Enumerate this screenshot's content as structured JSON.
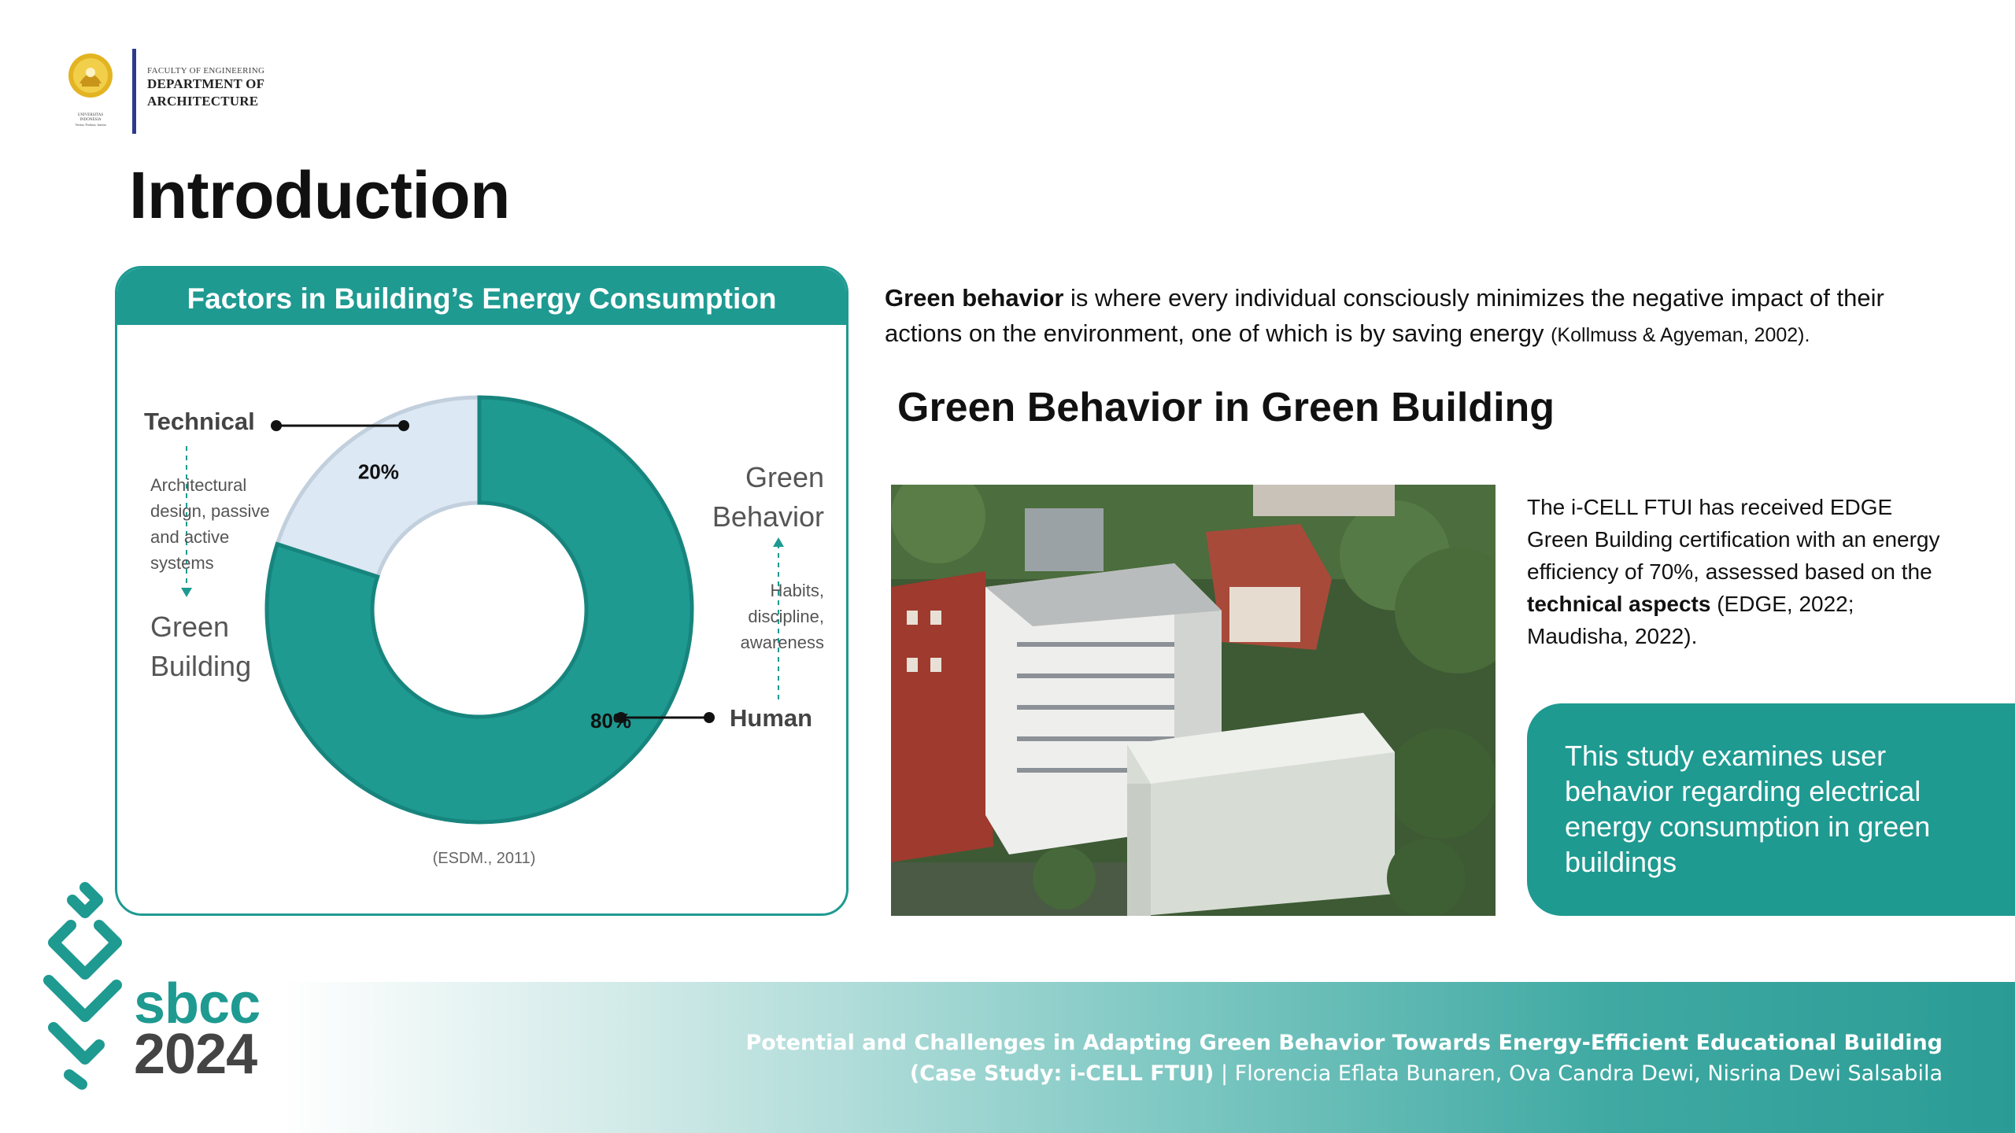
{
  "header": {
    "seal_caption_1": "UNIVERSITAS",
    "seal_caption_2": "INDONESIA",
    "seal_motto": "Veritas, Probitas, Iustitia",
    "faculty": "FACULTY OF ENGINEERING",
    "dept_line1": "DEPARTMENT OF",
    "dept_line2": "ARCHITECTURE"
  },
  "page_title": "Introduction",
  "chart_card": {
    "title": "Factors in Building’s Energy Consumption",
    "source": "(ESDM., 2011)",
    "technical_label": "Technical",
    "technical_desc": [
      "Architectural",
      "design, passive",
      "and active",
      "systems"
    ],
    "green_building": [
      "Green",
      "Building"
    ],
    "green_behavior": [
      "Green",
      "Behavior"
    ],
    "human_desc": [
      "Habits,",
      "discipline,",
      "awareness"
    ],
    "human_label": "Human"
  },
  "chart_data": {
    "type": "pie",
    "title": "Factors in Building’s Energy Consumption",
    "categories": [
      "Technical",
      "Human"
    ],
    "values": [
      20,
      80
    ],
    "value_labels": [
      "20%",
      "80%"
    ],
    "colors": [
      "#dce8f4",
      "#1e9a91"
    ],
    "donut": true
  },
  "intro": {
    "bold": "Green behavior",
    "text": " is where every individual consciously minimizes the negative impact of their actions on the environment, one of which is by saving energy ",
    "cite": "(Kollmuss & Agyeman, 2002)."
  },
  "section_title": "Green Behavior in Green Building",
  "cert": {
    "text1": "The i-CELL FTUI has received EDGE Green Building certification with an energy efficiency of 70%, assessed based on the ",
    "bold": "technical aspects",
    "text2": " (EDGE, 2022; Maudisha, 2022)."
  },
  "study_box": "This study examines user behavior regarding electrical energy consumption in green buildings",
  "footer": {
    "logo_s": "sbcc",
    "logo_year": "2024",
    "line1": "Potential and Challenges in Adapting Green Behavior Towards Energy-Efficient Educational Building",
    "line2_bold": "(Case Study: i-CELL FTUI)",
    "line2_rest": " | Florencia Eflata Bunaren, Ova Candra Dewi, Nisrina Dewi Salsabila"
  },
  "colors": {
    "teal": "#1e9a91",
    "navy": "#2d3a8c",
    "light_slice": "#dce8f4"
  }
}
